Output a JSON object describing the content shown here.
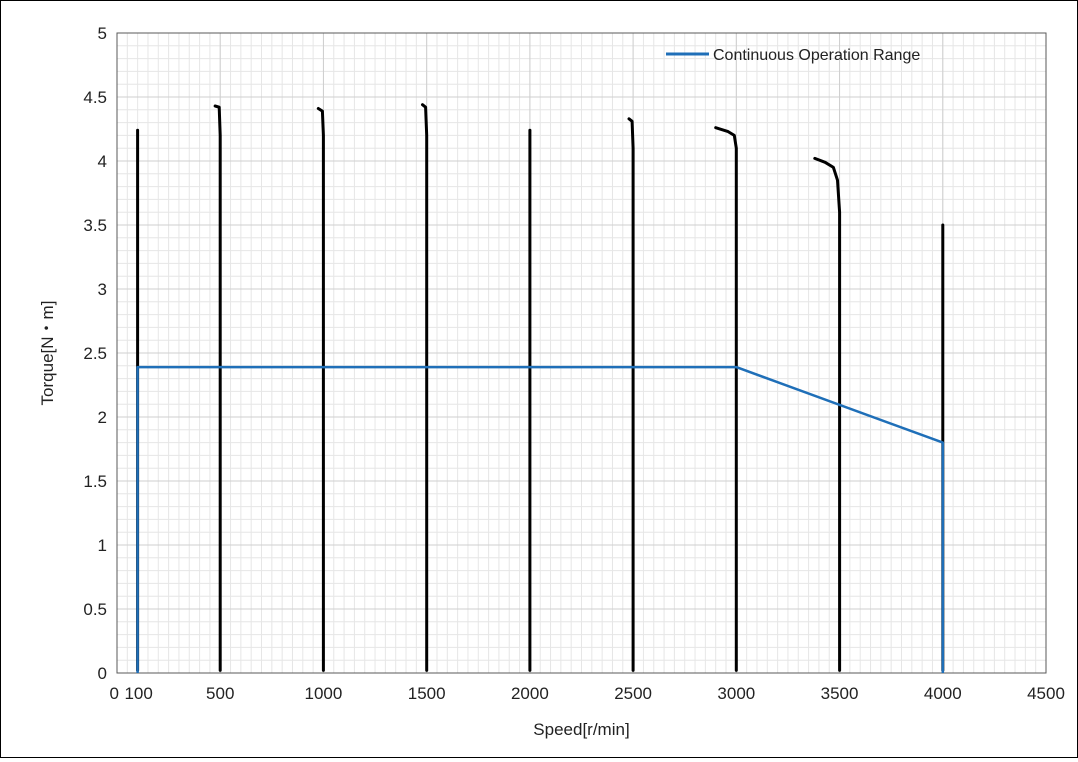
{
  "chart_data": {
    "type": "line",
    "xlabel": "Speed[r/min]",
    "ylabel": "Torque[N・m]",
    "xlim": [
      0,
      4500
    ],
    "ylim": [
      0,
      5
    ],
    "x_ticks": [
      {
        "value": 0,
        "label": "0"
      },
      {
        "value": 100,
        "label": "100"
      },
      {
        "value": 500,
        "label": "500"
      },
      {
        "value": 1000,
        "label": "1000"
      },
      {
        "value": 1500,
        "label": "1500"
      },
      {
        "value": 2000,
        "label": "2000"
      },
      {
        "value": 2500,
        "label": "2500"
      },
      {
        "value": 3000,
        "label": "3000"
      },
      {
        "value": 3500,
        "label": "3500"
      },
      {
        "value": 4000,
        "label": "4000"
      },
      {
        "value": 4500,
        "label": "4500"
      }
    ],
    "y_ticks": [
      {
        "value": 0,
        "label": "0"
      },
      {
        "value": 0.5,
        "label": "0.5"
      },
      {
        "value": 1,
        "label": "1"
      },
      {
        "value": 1.5,
        "label": "1.5"
      },
      {
        "value": 2,
        "label": "2"
      },
      {
        "value": 2.5,
        "label": "2.5"
      },
      {
        "value": 3,
        "label": "3"
      },
      {
        "value": 3.5,
        "label": "3.5"
      },
      {
        "value": 4,
        "label": "4"
      },
      {
        "value": 4.5,
        "label": "4.5"
      },
      {
        "value": 5,
        "label": "5"
      }
    ],
    "grid": true,
    "legend_position": "top-right",
    "legend": [
      "Continuous Operation Range"
    ],
    "series": [
      {
        "name": "Continuous Operation Range",
        "color": "#1f6fb8",
        "x": [
          100,
          100,
          3000,
          4000,
          4000
        ],
        "y": [
          0,
          2.39,
          2.39,
          1.8,
          0
        ]
      }
    ],
    "speed_torque_traces": {
      "color": "#000000",
      "traces": [
        {
          "x": [
            100,
            100,
            100
          ],
          "y": [
            4.24,
            2.0,
            0.02
          ]
        },
        {
          "x": [
            475,
            495,
            500,
            500
          ],
          "y": [
            4.43,
            4.42,
            4.2,
            0.02
          ]
        },
        {
          "x": [
            975,
            995,
            1000,
            1000
          ],
          "y": [
            4.41,
            4.39,
            4.2,
            0.02
          ]
        },
        {
          "x": [
            1480,
            1495,
            1500,
            1500
          ],
          "y": [
            4.44,
            4.42,
            4.2,
            0.02
          ]
        },
        {
          "x": [
            2000,
            2000,
            2000
          ],
          "y": [
            4.24,
            2.0,
            0.02
          ]
        },
        {
          "x": [
            2480,
            2495,
            2500,
            2500
          ],
          "y": [
            4.33,
            4.31,
            4.1,
            0.02
          ]
        },
        {
          "x": [
            2900,
            2960,
            2990,
            3000,
            3000
          ],
          "y": [
            4.26,
            4.23,
            4.2,
            4.1,
            0.02
          ]
        },
        {
          "x": [
            3380,
            3430,
            3470,
            3490,
            3500,
            3500
          ],
          "y": [
            4.02,
            3.99,
            3.95,
            3.85,
            3.6,
            0.02
          ]
        },
        {
          "x": [
            4000,
            4000,
            4000
          ],
          "y": [
            3.5,
            1.8,
            0.02
          ]
        }
      ]
    }
  }
}
